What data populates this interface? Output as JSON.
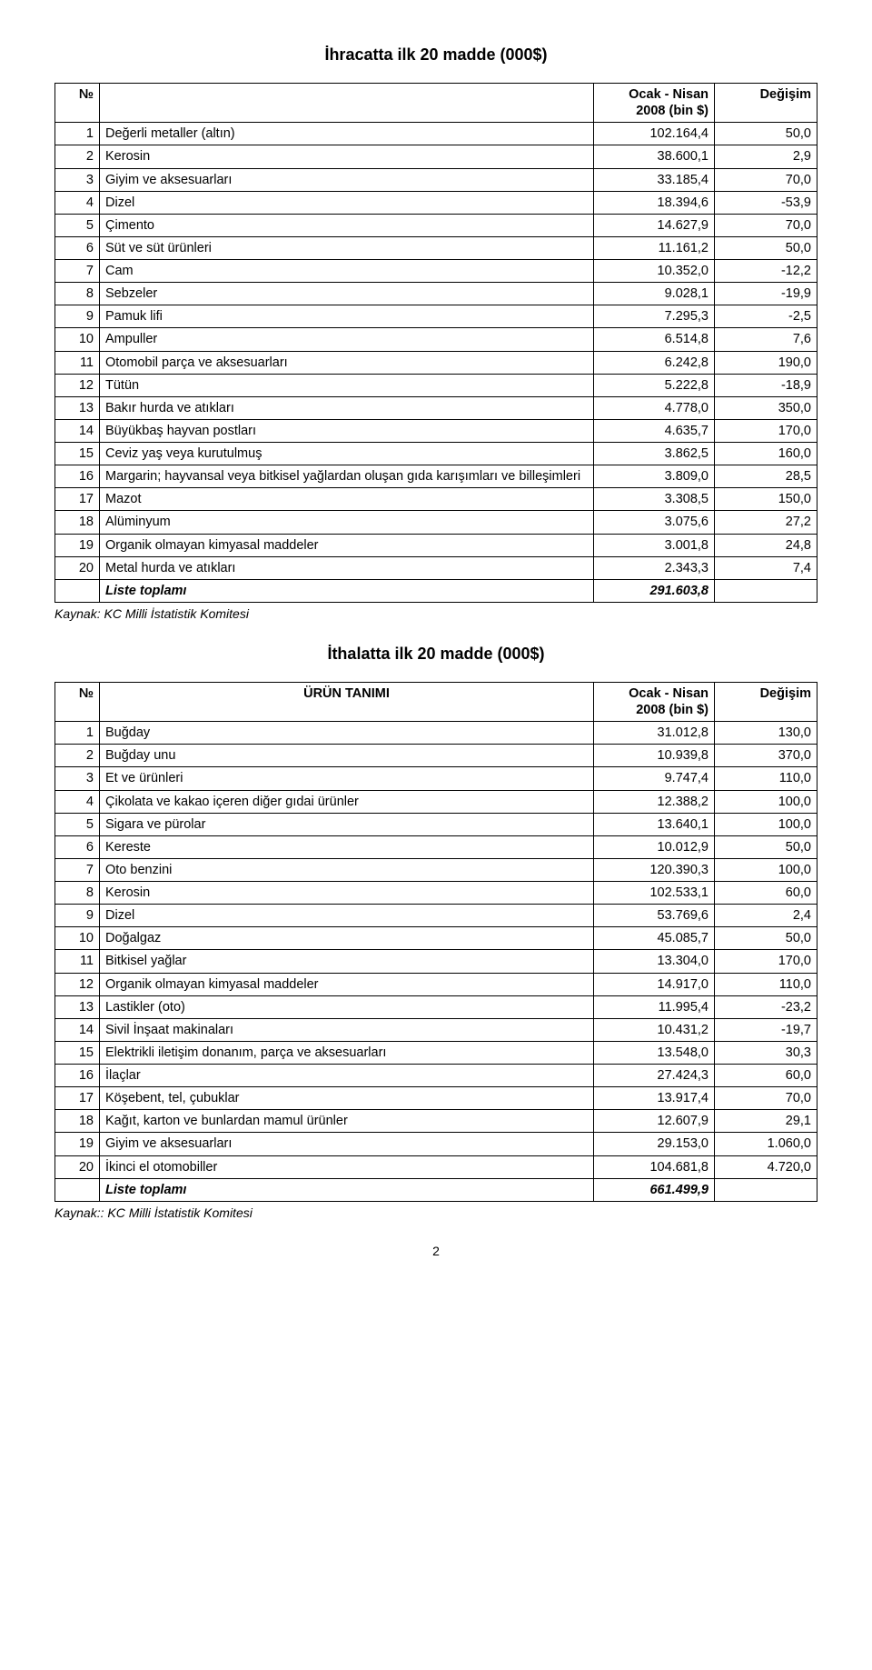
{
  "title1": "İhracatta ilk 20 madde (000$)",
  "headers": {
    "no": "№",
    "urun": "ÜRÜN TANIMI",
    "period_line1": "Ocak - Nisan",
    "period_line2": "2008 (bin $)",
    "change": "Değişim"
  },
  "table1": {
    "rows": [
      {
        "n": "1",
        "name": "Değerli metaller (altın)",
        "v": "102.164,4",
        "c": "50,0"
      },
      {
        "n": "2",
        "name": "Kerosin",
        "v": "38.600,1",
        "c": "2,9"
      },
      {
        "n": "3",
        "name": "Giyim ve aksesuarları",
        "v": "33.185,4",
        "c": "70,0"
      },
      {
        "n": "4",
        "name": "Dizel",
        "v": "18.394,6",
        "c": "-53,9"
      },
      {
        "n": "5",
        "name": "Çimento",
        "v": "14.627,9",
        "c": "70,0"
      },
      {
        "n": "6",
        "name": "Süt ve süt ürünleri",
        "v": "11.161,2",
        "c": "50,0"
      },
      {
        "n": "7",
        "name": "Cam",
        "v": "10.352,0",
        "c": "-12,2"
      },
      {
        "n": "8",
        "name": "Sebzeler",
        "v": "9.028,1",
        "c": "-19,9"
      },
      {
        "n": "9",
        "name": "Pamuk lifi",
        "v": "7.295,3",
        "c": "-2,5"
      },
      {
        "n": "10",
        "name": "Ampuller",
        "v": "6.514,8",
        "c": "7,6"
      },
      {
        "n": "11",
        "name": "Otomobil parça ve aksesuarları",
        "v": "6.242,8",
        "c": "190,0"
      },
      {
        "n": "12",
        "name": "Tütün",
        "v": "5.222,8",
        "c": "-18,9"
      },
      {
        "n": "13",
        "name": "Bakır hurda ve atıkları",
        "v": "4.778,0",
        "c": "350,0"
      },
      {
        "n": "14",
        "name": "Büyükbaş hayvan postları",
        "v": "4.635,7",
        "c": "170,0"
      },
      {
        "n": "15",
        "name": "Ceviz yaş veya kurutulmuş",
        "v": "3.862,5",
        "c": "160,0"
      },
      {
        "n": "16",
        "name": "Margarin; hayvansal veya bitkisel yağlardan oluşan gıda karışımları ve billeşimleri",
        "v": "3.809,0",
        "c": "28,5"
      },
      {
        "n": "17",
        "name": "Mazot",
        "v": "3.308,5",
        "c": "150,0"
      },
      {
        "n": "18",
        "name": "Alüminyum",
        "v": "3.075,6",
        "c": "27,2"
      },
      {
        "n": "19",
        "name": "Organik olmayan kimyasal maddeler",
        "v": "3.001,8",
        "c": "24,8"
      },
      {
        "n": "20",
        "name": "Metal hurda ve atıkları",
        "v": "2.343,3",
        "c": "7,4"
      }
    ],
    "liste_label": "Liste toplamı",
    "liste_value": "291.603,8"
  },
  "source1": "Kaynak: KC Milli İstatistik Komitesi",
  "title2": "İthalatta ilk 20 madde (000$)",
  "table2": {
    "rows": [
      {
        "n": "1",
        "name": "Buğday",
        "v": "31.012,8",
        "c": "130,0"
      },
      {
        "n": "2",
        "name": "Buğday unu",
        "v": "10.939,8",
        "c": "370,0"
      },
      {
        "n": "3",
        "name": "Et ve ürünleri",
        "v": "9.747,4",
        "c": "110,0"
      },
      {
        "n": "4",
        "name": "Çikolata ve kakao içeren diğer gıdai ürünler",
        "v": "12.388,2",
        "c": "100,0"
      },
      {
        "n": "5",
        "name": "Sigara ve pürolar",
        "v": "13.640,1",
        "c": "100,0"
      },
      {
        "n": "6",
        "name": "Kereste",
        "v": "10.012,9",
        "c": "50,0"
      },
      {
        "n": "7",
        "name": "Oto benzini",
        "v": "120.390,3",
        "c": "100,0"
      },
      {
        "n": "8",
        "name": "Kerosin",
        "v": "102.533,1",
        "c": "60,0"
      },
      {
        "n": "9",
        "name": "Dizel",
        "v": "53.769,6",
        "c": "2,4"
      },
      {
        "n": "10",
        "name": "Doğalgaz",
        "v": "45.085,7",
        "c": "50,0"
      },
      {
        "n": "11",
        "name": "Bitkisel yağlar",
        "v": "13.304,0",
        "c": "170,0"
      },
      {
        "n": "12",
        "name": "Organik olmayan kimyasal maddeler",
        "v": "14.917,0",
        "c": "110,0"
      },
      {
        "n": "13",
        "name": "Lastikler (oto)",
        "v": "11.995,4",
        "c": "-23,2"
      },
      {
        "n": "14",
        "name": "Sivil İnşaat makinaları",
        "v": "10.431,2",
        "c": "-19,7"
      },
      {
        "n": "15",
        "name": "Elektrikli iletişim donanım, parça ve aksesuarları",
        "v": "13.548,0",
        "c": "30,3"
      },
      {
        "n": "16",
        "name": "İlaçlar",
        "v": "27.424,3",
        "c": "60,0"
      },
      {
        "n": "17",
        "name": "Köşebent, tel, çubuklar",
        "v": "13.917,4",
        "c": "70,0"
      },
      {
        "n": "18",
        "name": "Kağıt, karton ve bunlardan mamul ürünler",
        "v": "12.607,9",
        "c": "29,1"
      },
      {
        "n": "19",
        "name": "Giyim ve aksesuarları",
        "v": "29.153,0",
        "c": "1.060,0"
      },
      {
        "n": "20",
        "name": "İkinci el otomobiller",
        "v": "104.681,8",
        "c": "4.720,0"
      }
    ],
    "liste_label": "Liste toplamı",
    "liste_value": "661.499,9"
  },
  "source2": "Kaynak:: KC Milli İstatistik Komitesi",
  "page_number": "2"
}
